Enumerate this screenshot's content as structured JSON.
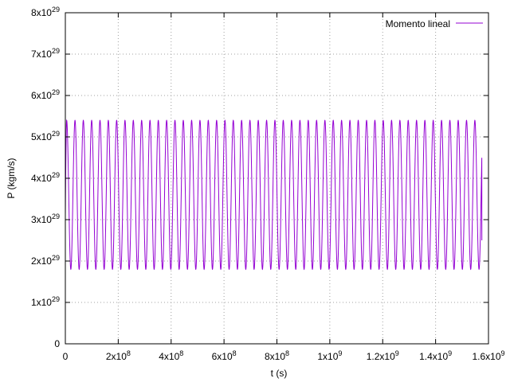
{
  "chart_data": {
    "type": "line",
    "xlabel": "t (s)",
    "ylabel": "P (kgm/s)",
    "xlim": [
      0,
      1600000000
    ],
    "ylim": [
      0,
      8e+29
    ],
    "grid": true,
    "legend_position": "top-right",
    "x_ticks": [
      {
        "value": 0,
        "mant": "0",
        "exp": ""
      },
      {
        "value": 200000000,
        "mant": "2x10",
        "exp": "8"
      },
      {
        "value": 400000000,
        "mant": "4x10",
        "exp": "8"
      },
      {
        "value": 600000000,
        "mant": "6x10",
        "exp": "8"
      },
      {
        "value": 800000000,
        "mant": "8x10",
        "exp": "8"
      },
      {
        "value": 1000000000,
        "mant": "1x10",
        "exp": "9"
      },
      {
        "value": 1200000000,
        "mant": "1.2x10",
        "exp": "9"
      },
      {
        "value": 1400000000,
        "mant": "1.4x10",
        "exp": "9"
      },
      {
        "value": 1600000000,
        "mant": "1.6x10",
        "exp": "9"
      }
    ],
    "y_ticks": [
      {
        "value": 0,
        "mant": "0",
        "exp": ""
      },
      {
        "value": 1e+29,
        "mant": "1x10",
        "exp": "29"
      },
      {
        "value": 2e+29,
        "mant": "2x10",
        "exp": "29"
      },
      {
        "value": 3e+29,
        "mant": "3x10",
        "exp": "29"
      },
      {
        "value": 4e+29,
        "mant": "4x10",
        "exp": "29"
      },
      {
        "value": 5e+29,
        "mant": "5x10",
        "exp": "29"
      },
      {
        "value": 6e+29,
        "mant": "6x10",
        "exp": "29"
      },
      {
        "value": 7e+29,
        "mant": "7x10",
        "exp": "29"
      },
      {
        "value": 8e+29,
        "mant": "8x10",
        "exp": "29"
      }
    ],
    "series": [
      {
        "name": "Momento lineal",
        "color": "#9400d3",
        "pattern": "periodic",
        "period": 31500000,
        "max": 5.4e+29,
        "min": 1.8e+29,
        "start_value": 3.1e+29,
        "end_value": 2.5e+29,
        "t_start": 0,
        "t_end": 1575000000,
        "first_peak_t": 5000000
      }
    ]
  }
}
